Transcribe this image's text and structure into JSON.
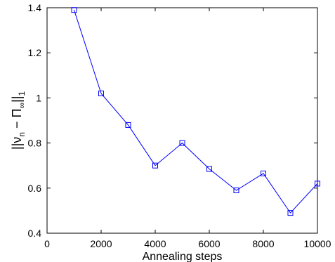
{
  "chart_data": {
    "type": "line",
    "title": "",
    "xlabel": "Annealing steps",
    "ylabel": {
      "prefix": "||ν",
      "sub1": "n",
      "middle": " − Π",
      "sub2": "∞",
      "suffix": "||",
      "sub3": "1"
    },
    "xlim": [
      0,
      10000
    ],
    "ylim": [
      0.4,
      1.4
    ],
    "xticks": [
      0,
      2000,
      4000,
      6000,
      8000,
      10000
    ],
    "xtick_labels": [
      "0",
      "2000",
      "4000",
      "6000",
      "8000",
      "10000"
    ],
    "yticks": [
      0.4,
      0.6,
      0.8,
      1.0,
      1.2,
      1.4
    ],
    "ytick_labels": [
      "0.4",
      "0.6",
      "0.8",
      "1",
      "1.2",
      "1.4"
    ],
    "grid": false,
    "series": [
      {
        "marker": "square",
        "color": "#0000ff",
        "x": [
          1000,
          2000,
          3000,
          4000,
          5000,
          6000,
          7000,
          8000,
          9000,
          10000
        ],
        "y": [
          1.39,
          1.02,
          0.88,
          0.7,
          0.8,
          0.685,
          0.59,
          0.665,
          0.49,
          0.62
        ]
      }
    ]
  }
}
